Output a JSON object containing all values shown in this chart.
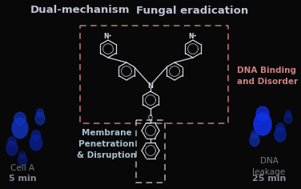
{
  "bg_color": "#080808",
  "title1": "Dual-mechanism",
  "title2": "Fungal eradication",
  "title_color": "#c0c4d8",
  "title_fontsize": 9.5,
  "dna_box_color": "#c87878",
  "membrane_box_color": "#b0b0b8",
  "dna_label": "DNA Binding\nand Disorder",
  "dna_label_color": "#d08080",
  "dna_label_fontsize": 7.5,
  "membrane_label": "Membrane\nPenetration\n& Disruption",
  "membrane_label_color": "#a8c0d0",
  "membrane_label_fontsize": 7.5,
  "cell_a_label": "Cell A",
  "cell_a_color": "#787888",
  "five_min_label": "5 min",
  "five_min_color": "#888898",
  "twentyfive_min_label": "25 min",
  "twentyfive_min_color": "#888898",
  "dna_leakage_label": "DNA\nleakage",
  "dna_leakage_color": "#787888",
  "time_fontsize": 7.5,
  "molecule_color": "#d8d8e0",
  "molecule_lw": 0.9
}
